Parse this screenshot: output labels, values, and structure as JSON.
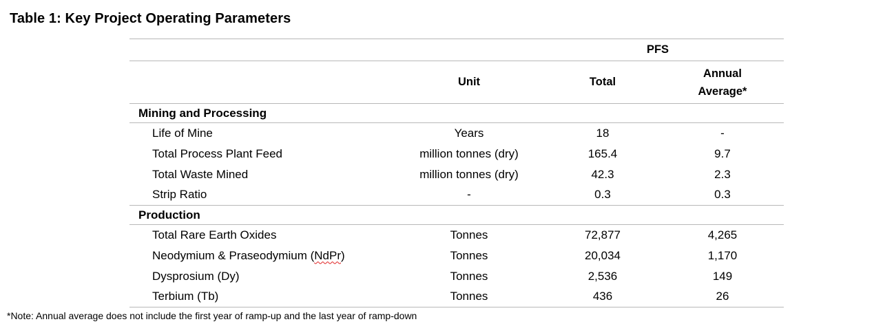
{
  "document": {
    "title": "Table 1: Key Project Operating Parameters",
    "footnote": "*Note: Annual average does not include the first year of ramp-up and the last year of ramp-down"
  },
  "table": {
    "span_header": "PFS",
    "headers": {
      "unit": "Unit",
      "total": "Total",
      "annual_average": "Annual\nAverage*"
    },
    "sections": [
      {
        "name": "Mining and Processing",
        "rows": [
          {
            "parameter": "Life of Mine",
            "unit": "Years",
            "total": "18",
            "annual_average": "-"
          },
          {
            "parameter": "Total Process Plant Feed",
            "unit": "million tonnes (dry)",
            "total": "165.4",
            "annual_average": "9.7"
          },
          {
            "parameter": "Total Waste Mined",
            "unit": "million tonnes (dry)",
            "total": "42.3",
            "annual_average": "2.3"
          },
          {
            "parameter": "Strip Ratio",
            "unit": "-",
            "total": "0.3",
            "annual_average": "0.3"
          }
        ]
      },
      {
        "name": "Production",
        "rows": [
          {
            "parameter": "Total Rare Earth Oxides",
            "unit": "Tonnes",
            "total": "72,877",
            "annual_average": "4,265"
          },
          {
            "parameter_prefix": "Neodymium & Praseodymium (",
            "parameter_misspelled": "NdPr",
            "parameter_suffix": ")",
            "unit": "Tonnes",
            "total": "20,034",
            "annual_average": "1,170"
          },
          {
            "parameter": "Dysprosium (Dy)",
            "unit": "Tonnes",
            "total": "2,536",
            "annual_average": "149"
          },
          {
            "parameter": "Terbium (Tb)",
            "unit": "Tonnes",
            "total": "436",
            "annual_average": "26"
          }
        ]
      }
    ]
  },
  "colors": {
    "background": "#ffffff",
    "text": "#000000",
    "table_border": "#b7b7b7",
    "spellcheck_underline": "#e02020"
  }
}
